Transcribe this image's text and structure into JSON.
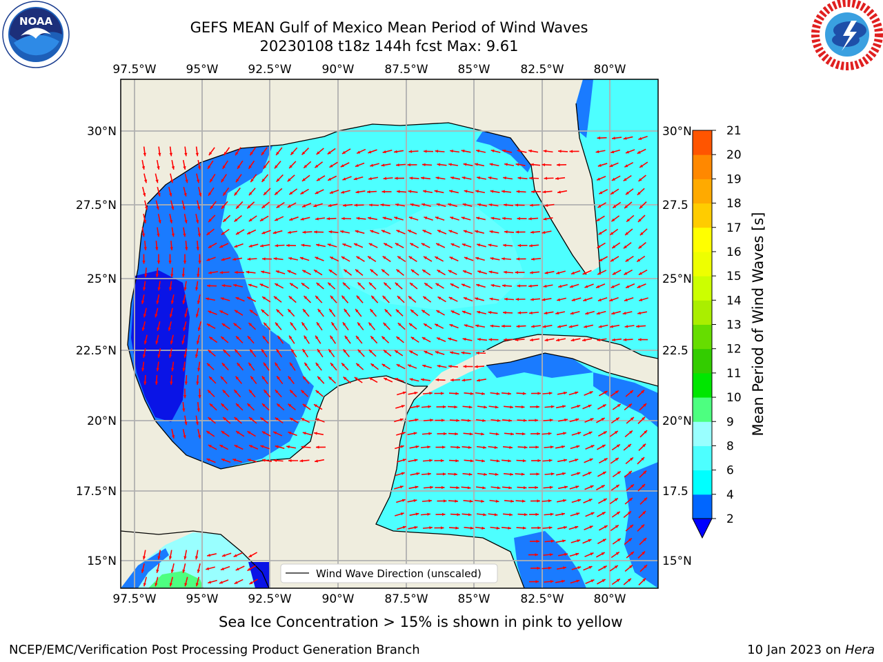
{
  "title_line1": "GEFS MEAN Gulf of Mexico Mean Period of Wind Waves",
  "title_line2": "20230108 t18z 144h fcst   Max: 9.61",
  "logos": {
    "noaa": {
      "text": "NOAA",
      "ring_text": "NATIONAL OCEANIC AND ATMOSPHERIC ADMINISTRATION · U.S. DEPARTMENT OF COMMERCE"
    },
    "nws": {
      "ring_text": "NATIONAL WEATHER SERVICE"
    }
  },
  "map": {
    "lon_labels": [
      "97.5°W",
      "95°W",
      "92.5°W",
      "90°W",
      "87.5°W",
      "85°W",
      "82.5°W",
      "80°W"
    ],
    "lat_labels_left": [
      "30°N",
      "27.5°N",
      "25°N",
      "22.5°N",
      "20°N",
      "17.5°N",
      "15°N"
    ],
    "lat_labels_right": [
      "30°N",
      "27.5",
      "25°N",
      "22.5",
      "20°N",
      "17.5",
      "15°N"
    ],
    "legend_label": "Wind Wave Direction (unscaled)",
    "colors": {
      "land": "#efedde",
      "ocean_fill": "#4dffff",
      "arrow": "#ff0000",
      "grid": "#b0b0b0"
    }
  },
  "colorbar": {
    "label": "Mean Period of Wind Waves [s]",
    "ticks": [
      "2",
      "4",
      "6",
      "8",
      "9",
      "10",
      "11",
      "12",
      "13",
      "14",
      "15",
      "16",
      "17",
      "18",
      "19",
      "20",
      "21"
    ],
    "colors": [
      "#0066ff",
      "#00ffff",
      "#4dffff",
      "#99ffff",
      "#4dff80",
      "#00e600",
      "#33cc00",
      "#66dd00",
      "#aaee00",
      "#ccff00",
      "#eeff00",
      "#ffff00",
      "#ffcc00",
      "#ffaa00",
      "#ff8800",
      "#ff5500",
      "#ff2200",
      "#ff0000"
    ],
    "extend_color": "#0000ff"
  },
  "bottom_note": "Sea Ice Concentration > 15% is shown in pink to yellow",
  "footer_left": "NCEP/EMC/Verification Post Processing Product Generation Branch",
  "footer_right_prefix": "10 Jan 2023 on ",
  "footer_right_machine": "Hera"
}
